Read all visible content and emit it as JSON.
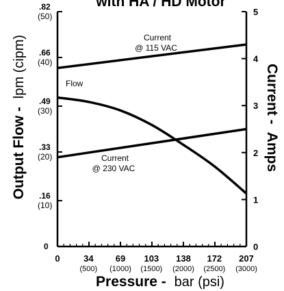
{
  "chart_data": {
    "type": "line",
    "title": "with HA / HD Motor",
    "xlabel_bold": "Pressure -",
    "xlabel_light": "bar (psi)",
    "ylabel_left_bold": "Output Flow -",
    "ylabel_left_light": "lpm (cipm)",
    "ylabel_right_bold": "Current -",
    "ylabel_right_light": "Amps",
    "x_ticks": [
      {
        "value": 0,
        "label": "0",
        "sub": ""
      },
      {
        "value": 34,
        "label": "34",
        "sub": "(500)"
      },
      {
        "value": 69,
        "label": "69",
        "sub": "(1000)"
      },
      {
        "value": 103,
        "label": "103",
        "sub": "(1500)"
      },
      {
        "value": 138,
        "label": "138",
        "sub": "(2000)"
      },
      {
        "value": 172,
        "label": "172",
        "sub": "(2500)"
      },
      {
        "value": 207,
        "label": "207",
        "sub": "(3000)"
      }
    ],
    "xlim": [
      0,
      207
    ],
    "y_left_ticks": [
      {
        "value": 0,
        "label": "0",
        "sub": ""
      },
      {
        "value": 0.16,
        "label": ".16",
        "sub": "(10)"
      },
      {
        "value": 0.33,
        "label": ".33",
        "sub": "(20)"
      },
      {
        "value": 0.49,
        "label": ".49",
        "sub": "(30)"
      },
      {
        "value": 0.66,
        "label": ".66",
        "sub": "(40)"
      },
      {
        "value": 0.82,
        "label": ".82",
        "sub": "(50)"
      }
    ],
    "y_left_lim": [
      0,
      0.82
    ],
    "y_right_ticks": [
      "0",
      "1",
      "2",
      "3",
      "4",
      "5"
    ],
    "y_right_lim": [
      0,
      5
    ],
    "series": [
      {
        "name": "Flow",
        "axis": "left",
        "label_text": "Flow",
        "points": [
          [
            0,
            0.52
          ],
          [
            34,
            0.505
          ],
          [
            69,
            0.475
          ],
          [
            103,
            0.425
          ],
          [
            138,
            0.355
          ],
          [
            172,
            0.28
          ],
          [
            207,
            0.185
          ]
        ]
      },
      {
        "name": "Current @ 115 VAC",
        "axis": "right",
        "label_line1": "Current",
        "label_line2": "@ 115 VAC",
        "points": [
          [
            0,
            3.8
          ],
          [
            207,
            4.3
          ]
        ]
      },
      {
        "name": "Current @ 230 VAC",
        "axis": "right",
        "label_line1": "Current",
        "label_line2": "@ 230 VAC",
        "points": [
          [
            0,
            1.9
          ],
          [
            207,
            2.5
          ]
        ]
      }
    ],
    "colors": {
      "line": "#000000",
      "axis": "#000000",
      "background": "#ffffff"
    }
  }
}
